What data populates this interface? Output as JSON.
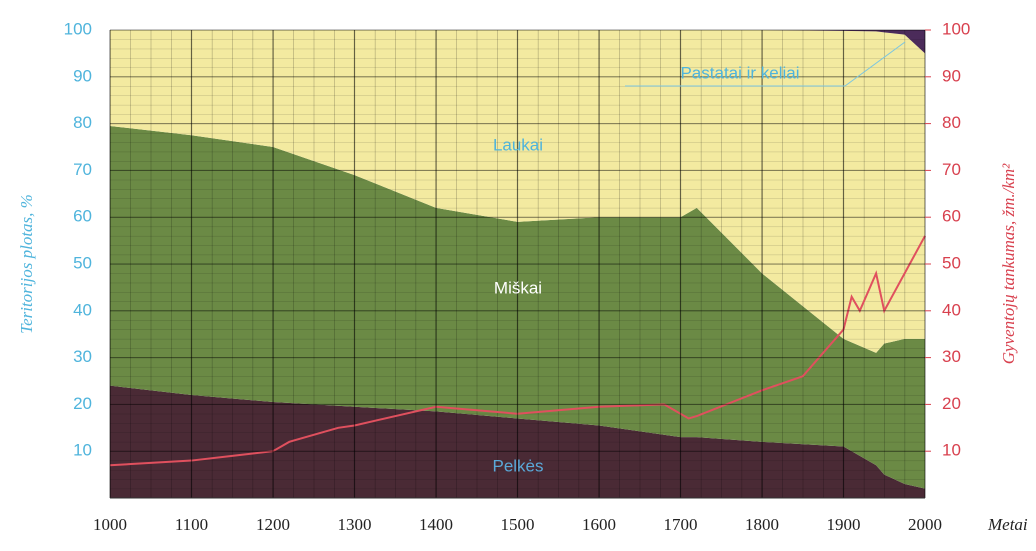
{
  "chart_data": [
    {
      "type": "stacked-area",
      "x": [
        1000,
        1100,
        1200,
        1300,
        1400,
        1500,
        1600,
        1700,
        1720,
        1800,
        1900,
        1940,
        1950,
        1975,
        2000
      ],
      "series": [
        {
          "name": "Pelkės",
          "color": "#4a2a35",
          "values": [
            24,
            22,
            20.5,
            19.5,
            18.5,
            17,
            15.5,
            13,
            13,
            12,
            11,
            7,
            5,
            3,
            2
          ]
        },
        {
          "name": "Miškai",
          "color": "#6b8a45",
          "values": [
            55.5,
            55.5,
            54.5,
            49.5,
            43.5,
            42,
            44.5,
            47,
            49,
            36,
            23,
            24,
            28,
            31,
            32
          ]
        },
        {
          "name": "Laukai",
          "color": "#f3eaa0",
          "values": [
            20.5,
            22.5,
            25,
            31,
            38,
            41,
            40,
            40,
            38,
            52,
            65.8,
            68.7,
            66.5,
            65,
            61
          ]
        },
        {
          "name": "Pastatai ir keliai",
          "color": "#4b2b5a",
          "values": [
            0,
            0,
            0,
            0,
            0,
            0,
            0,
            0,
            0,
            0,
            0.2,
            0.3,
            0.5,
            1,
            5
          ]
        }
      ],
      "xlim": [
        1000,
        2000
      ],
      "xticks": [
        1000,
        1100,
        1200,
        1300,
        1400,
        1500,
        1600,
        1700,
        1800,
        1900,
        2000
      ],
      "ylim": [
        0,
        100
      ],
      "yticks": [
        10,
        20,
        30,
        40,
        50,
        60,
        70,
        80,
        90,
        100
      ],
      "x_label": "Metai",
      "y_label": "Teritorijos plotas, %",
      "grid": true
    },
    {
      "type": "line",
      "x": [
        1000,
        1050,
        1100,
        1150,
        1200,
        1220,
        1280,
        1300,
        1400,
        1500,
        1600,
        1680,
        1710,
        1720,
        1800,
        1850,
        1900,
        1910,
        1920,
        1940,
        1950,
        2000
      ],
      "series": [
        {
          "color": "#e0505e",
          "axis": "y2",
          "values": [
            7,
            7.5,
            8,
            9,
            10,
            12,
            15,
            15.5,
            19.5,
            18,
            19.5,
            20,
            17,
            17.5,
            23,
            26,
            36,
            43,
            40,
            48,
            40,
            56
          ]
        }
      ],
      "y2lim": [
        0,
        100
      ],
      "y2ticks": [
        10,
        20,
        30,
        40,
        50,
        60,
        70,
        80,
        90,
        100
      ],
      "y2_label": "Gyventojų tankumas, žm./km²"
    }
  ]
}
